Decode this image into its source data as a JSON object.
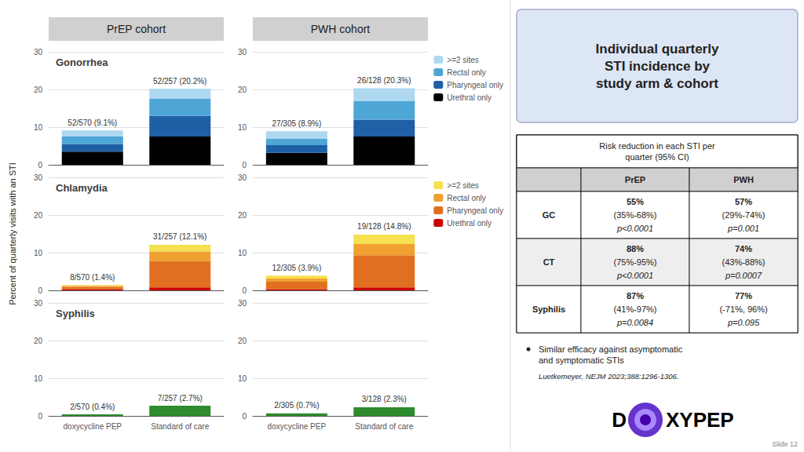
{
  "title": "Individual quarterly\nSTI incidence by\nstudy arm & cohort",
  "ylabel": "Percent of quarterly visits with an STI",
  "column_titles": [
    "PrEP cohort",
    "PWH cohort"
  ],
  "table": {
    "title": "Risk reduction in each STI per\nquarter (95% CI)",
    "rows": [
      [
        null,
        "PrEP",
        "PWH"
      ],
      [
        "GC",
        "55%\n(35%-68%)\np<0.0001",
        "57%\n(29%-74%)\np=0.001"
      ],
      [
        "CT",
        "88%\n(75%-95%)\np<0.0001",
        "74%\n(43%-88%)\np=0.0007"
      ],
      [
        "Syphilis",
        "87%\n(41%-97%)\np=0.0084",
        "77%\n(-71%, 96%)\np=0.095"
      ]
    ]
  },
  "bullet_text": "Similar efficacy against asymptomatic\nand symptomatic STIs",
  "citation": "Luetkemeyer, NEJM 2023;388:1296-1306.",
  "logo_texts": [
    "D",
    "XYPEP"
  ],
  "slide_number": "Slide 12",
  "chart_data": [
    {
      "type": "bar",
      "stacked": true,
      "title": "Gonorrhea",
      "categories": [
        "doxycycline PEP",
        "Standard of care"
      ],
      "series": [
        {
          "color": "#000000",
          "values": [
            3.5,
            7.5
          ]
        },
        {
          "color": "#1f5fa6",
          "values": [
            2.0,
            5.5
          ]
        },
        {
          "color": "#4da6d6",
          "values": [
            2.0,
            4.5
          ]
        },
        {
          "color": "#add8f0",
          "values": [
            1.6,
            2.7
          ]
        }
      ],
      "annotations": [
        "52/570 (9.1%)",
        "52/257 (20.2%)"
      ],
      "ylim": [
        0,
        30
      ],
      "yticks": [
        0,
        10,
        20,
        30
      ],
      "grid": true,
      "tick_labels": "y"
    },
    {
      "type": "bar",
      "stacked": true,
      "categories": [
        "doxycycline PEP",
        "Standard of care"
      ],
      "series": [
        {
          "name": "Urethral only",
          "color": "#000000",
          "values": [
            3.2,
            7.5
          ]
        },
        {
          "name": "Pharyngeal only",
          "color": "#1f5fa6",
          "values": [
            2.0,
            4.5
          ]
        },
        {
          "name": "Rectal only",
          "color": "#4da6d6",
          "values": [
            1.8,
            5.0
          ]
        },
        {
          "name": ">=2 sites",
          "color": "#add8f0",
          "values": [
            1.9,
            3.3
          ]
        }
      ],
      "annotations": [
        "27/305 (8.9%)",
        "26/128 (20.3%)"
      ],
      "ylim": [
        0,
        30
      ],
      "yticks": [
        0,
        10,
        20,
        30
      ],
      "grid": true,
      "tick_labels": "y",
      "legend": "upper right"
    },
    {
      "type": "bar",
      "stacked": true,
      "title": "Chlamydia",
      "categories": [
        "doxycycline PEP",
        "Standard of care"
      ],
      "series": [
        {
          "color": "#cc0000",
          "values": [
            0.3,
            0.8
          ]
        },
        {
          "color": "#e07020",
          "values": [
            0.6,
            7.0
          ]
        },
        {
          "color": "#f0a030",
          "values": [
            0.3,
            2.5
          ]
        },
        {
          "color": "#f5e050",
          "values": [
            0.2,
            1.8
          ]
        }
      ],
      "annotations": [
        "8/570 (1.4%)",
        "31/257 (12.1%)"
      ],
      "ylim": [
        0,
        30
      ],
      "yticks": [
        0,
        10,
        20,
        30
      ],
      "grid": true,
      "tick_labels": "y"
    },
    {
      "type": "bar",
      "stacked": true,
      "categories": [
        "doxycycline PEP",
        "Standard of care"
      ],
      "series": [
        {
          "name": "Urethral only",
          "color": "#cc0000",
          "values": [
            0.3,
            0.8
          ]
        },
        {
          "name": "Pharyngeal only",
          "color": "#e07020",
          "values": [
            2.0,
            8.5
          ]
        },
        {
          "name": "Rectal only",
          "color": "#f0a030",
          "values": [
            0.8,
            3.0
          ]
        },
        {
          "name": ">=2 sites",
          "color": "#f5e050",
          "values": [
            0.8,
            2.5
          ]
        }
      ],
      "annotations": [
        "12/305 (3.9%)",
        "19/128 (14.8%)"
      ],
      "ylim": [
        0,
        30
      ],
      "yticks": [
        0,
        10,
        20,
        30
      ],
      "grid": true,
      "tick_labels": "y",
      "legend": "upper right"
    },
    {
      "type": "bar",
      "stacked": true,
      "title": "Syphilis",
      "categories": [
        "doxycycline PEP",
        "Standard of care"
      ],
      "series": [
        {
          "color": "#2e8b2e",
          "values": [
            0.4,
            2.7
          ]
        }
      ],
      "annotations": [
        "2/570 (0.4%)",
        "7/257 (2.7%)"
      ],
      "ylim": [
        0,
        30
      ],
      "yticks": [
        0,
        10,
        20,
        30
      ],
      "grid": true
    },
    {
      "type": "bar",
      "stacked": true,
      "categories": [
        "doxycycline PEP",
        "Standard of care"
      ],
      "series": [
        {
          "color": "#2e8b2e",
          "values": [
            0.7,
            2.3
          ]
        }
      ],
      "annotations": [
        "2/305 (0.7%)",
        "3/128 (2.3%)"
      ],
      "ylim": [
        0,
        30
      ],
      "yticks": [
        0,
        10,
        20,
        30
      ],
      "grid": true
    }
  ]
}
